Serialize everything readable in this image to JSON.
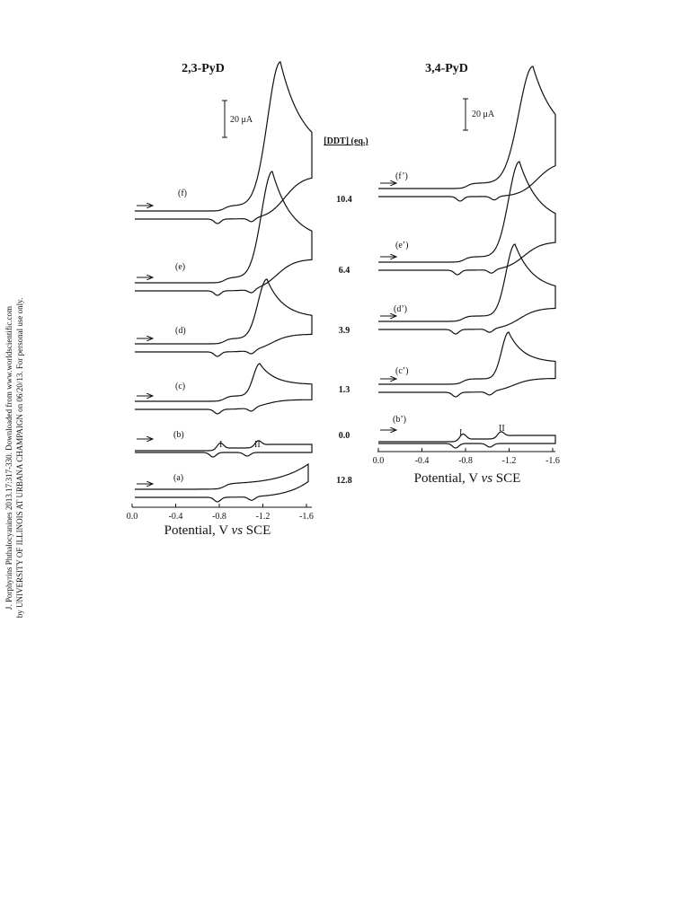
{
  "left_panel": {
    "title": "2,3-PyD",
    "scale_bar": "20 μA",
    "curve_labels": [
      "(f)",
      "(e)",
      "(d)",
      "(c)",
      "(b)",
      "(a)"
    ],
    "wave_labels": [
      "I",
      "II"
    ],
    "x_ticks": [
      "0.0",
      "-0.4",
      "-0.8",
      "-1.2",
      "-1.6"
    ],
    "x_label": [
      "Potential, V ",
      "vs",
      " SCE"
    ]
  },
  "ddt": {
    "header": "[DDT] (eq.)",
    "values": [
      "10.4",
      "6.4",
      "3.9",
      "1.3",
      "0.0",
      "12.8"
    ]
  },
  "right_panel": {
    "title": "3,4-PyD",
    "scale_bar": "20 μA",
    "curve_labels": [
      "(f’)",
      "(e’)",
      "(d’)",
      "(c’)",
      "(b’)"
    ],
    "wave_labels": [
      "I",
      "II"
    ],
    "x_ticks": [
      "0.0",
      "-0.4",
      "-0.8",
      "-1.2",
      "-1.6"
    ],
    "x_label": [
      "Potential, V ",
      "vs",
      " SCE"
    ]
  },
  "sidebar": [
    "J. Porphyrins Phthalocyanines 2013.17:317-330. Downloaded from www.worldscientific.com",
    "by UNIVERSITY OF ILLINOIS AT URBANA CHAMPAIGN on 06/20/13. For personal use only."
  ]
}
